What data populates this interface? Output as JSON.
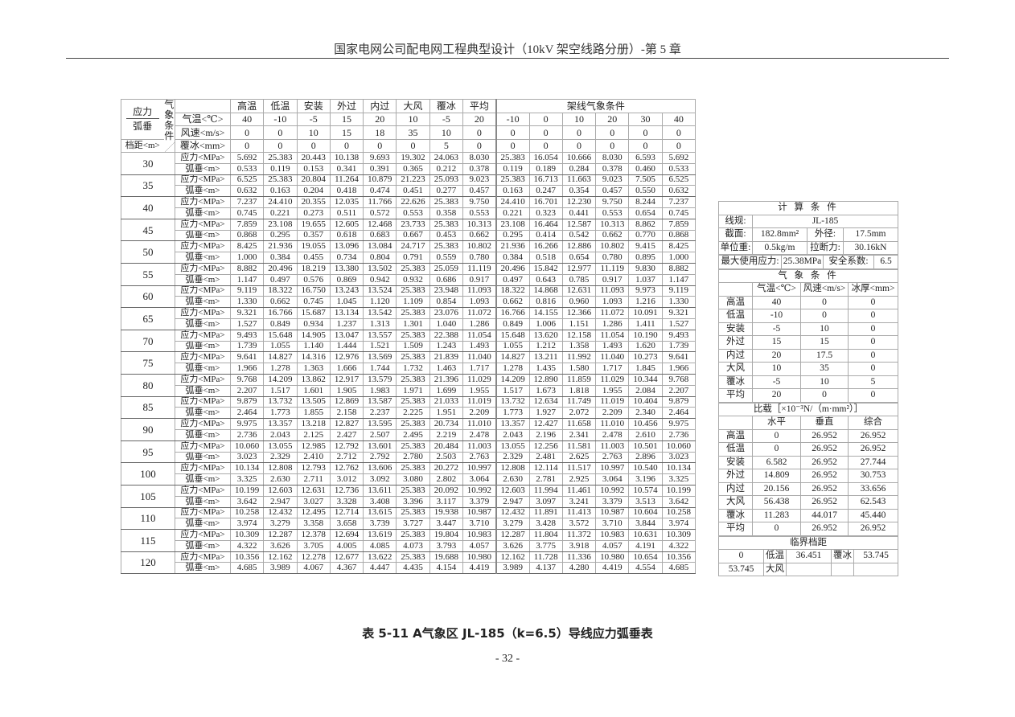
{
  "header": {
    "title": "国家电网公司配电网工程典型设计（10kV 架空线路分册）-第 5 章"
  },
  "main_table": {
    "corner": {
      "top": "应力",
      "bottom": "弧垂",
      "vertical": "气象条件",
      "span_label": "档距<m>"
    },
    "conditions": [
      "高温",
      "低温",
      "安装",
      "外过",
      "内过",
      "大风",
      "覆冰",
      "平均"
    ],
    "erection_header": "架线气象条件",
    "row_labels": {
      "temp": "气温<℃>",
      "wind": "风速<m/s>",
      "ice": "覆冰<mm>",
      "stress": "应力<MPa>",
      "sag": "弧垂<m>"
    },
    "temp": [
      "40",
      "-10",
      "-5",
      "15",
      "20",
      "10",
      "-5",
      "20",
      "-10",
      "0",
      "10",
      "20",
      "30",
      "40"
    ],
    "wind": [
      "0",
      "0",
      "10",
      "15",
      "18",
      "35",
      "10",
      "0",
      "0",
      "0",
      "0",
      "0",
      "0",
      "0"
    ],
    "ice": [
      "0",
      "0",
      "0",
      "0",
      "0",
      "0",
      "5",
      "0",
      "0",
      "0",
      "0",
      "0",
      "0",
      "0"
    ],
    "rows": [
      {
        "span": "30",
        "stress": [
          "5.692",
          "25.383",
          "20.443",
          "10.138",
          "9.693",
          "19.302",
          "24.063",
          "8.030",
          "25.383",
          "16.054",
          "10.666",
          "8.030",
          "6.593",
          "5.692"
        ],
        "sag": [
          "0.533",
          "0.119",
          "0.153",
          "0.341",
          "0.391",
          "0.365",
          "0.212",
          "0.378",
          "0.119",
          "0.189",
          "0.284",
          "0.378",
          "0.460",
          "0.533"
        ]
      },
      {
        "span": "35",
        "stress": [
          "6.525",
          "25.383",
          "20.804",
          "11.264",
          "10.879",
          "21.223",
          "25.093",
          "9.023",
          "25.383",
          "16.713",
          "11.663",
          "9.023",
          "7.505",
          "6.525"
        ],
        "sag": [
          "0.632",
          "0.163",
          "0.204",
          "0.418",
          "0.474",
          "0.451",
          "0.277",
          "0.457",
          "0.163",
          "0.247",
          "0.354",
          "0.457",
          "0.550",
          "0.632"
        ]
      },
      {
        "span": "40",
        "stress": [
          "7.237",
          "24.410",
          "20.355",
          "12.035",
          "11.766",
          "22.626",
          "25.383",
          "9.750",
          "24.410",
          "16.701",
          "12.230",
          "9.750",
          "8.244",
          "7.237"
        ],
        "sag": [
          "0.745",
          "0.221",
          "0.273",
          "0.511",
          "0.572",
          "0.553",
          "0.358",
          "0.553",
          "0.221",
          "0.323",
          "0.441",
          "0.553",
          "0.654",
          "0.745"
        ]
      },
      {
        "span": "45",
        "stress": [
          "7.859",
          "23.108",
          "19.655",
          "12.605",
          "12.468",
          "23.733",
          "25.383",
          "10.313",
          "23.108",
          "16.464",
          "12.587",
          "10.313",
          "8.862",
          "7.859"
        ],
        "sag": [
          "0.868",
          "0.295",
          "0.357",
          "0.618",
          "0.683",
          "0.667",
          "0.453",
          "0.662",
          "0.295",
          "0.414",
          "0.542",
          "0.662",
          "0.770",
          "0.868"
        ]
      },
      {
        "span": "50",
        "stress": [
          "8.425",
          "21.936",
          "19.055",
          "13.096",
          "13.084",
          "24.717",
          "25.383",
          "10.802",
          "21.936",
          "16.266",
          "12.886",
          "10.802",
          "9.415",
          "8.425"
        ],
        "sag": [
          "1.000",
          "0.384",
          "0.455",
          "0.734",
          "0.804",
          "0.791",
          "0.559",
          "0.780",
          "0.384",
          "0.518",
          "0.654",
          "0.780",
          "0.895",
          "1.000"
        ]
      },
      {
        "span": "55",
        "stress": [
          "8.882",
          "20.496",
          "18.219",
          "13.380",
          "13.502",
          "25.383",
          "25.059",
          "11.119",
          "20.496",
          "15.842",
          "12.977",
          "11.119",
          "9.830",
          "8.882"
        ],
        "sag": [
          "1.147",
          "0.497",
          "0.576",
          "0.869",
          "0.942",
          "0.932",
          "0.686",
          "0.917",
          "0.497",
          "0.643",
          "0.785",
          "0.917",
          "1.037",
          "1.147"
        ]
      },
      {
        "span": "60",
        "stress": [
          "9.119",
          "18.322",
          "16.750",
          "13.243",
          "13.524",
          "25.383",
          "23.948",
          "11.093",
          "18.322",
          "14.868",
          "12.631",
          "11.093",
          "9.973",
          "9.119"
        ],
        "sag": [
          "1.330",
          "0.662",
          "0.745",
          "1.045",
          "1.120",
          "1.109",
          "0.854",
          "1.093",
          "0.662",
          "0.816",
          "0.960",
          "1.093",
          "1.216",
          "1.330"
        ]
      },
      {
        "span": "65",
        "stress": [
          "9.321",
          "16.766",
          "15.687",
          "13.134",
          "13.542",
          "25.383",
          "23.076",
          "11.072",
          "16.766",
          "14.155",
          "12.366",
          "11.072",
          "10.091",
          "9.321"
        ],
        "sag": [
          "1.527",
          "0.849",
          "0.934",
          "1.237",
          "1.313",
          "1.301",
          "1.040",
          "1.286",
          "0.849",
          "1.006",
          "1.151",
          "1.286",
          "1.411",
          "1.527"
        ]
      },
      {
        "span": "70",
        "stress": [
          "9.493",
          "15.648",
          "14.905",
          "13.047",
          "13.557",
          "25.383",
          "22.388",
          "11.054",
          "15.648",
          "13.620",
          "12.158",
          "11.054",
          "10.190",
          "9.493"
        ],
        "sag": [
          "1.739",
          "1.055",
          "1.140",
          "1.444",
          "1.521",
          "1.509",
          "1.243",
          "1.493",
          "1.055",
          "1.212",
          "1.358",
          "1.493",
          "1.620",
          "1.739"
        ]
      },
      {
        "span": "75",
        "stress": [
          "9.641",
          "14.827",
          "14.316",
          "12.976",
          "13.569",
          "25.383",
          "21.839",
          "11.040",
          "14.827",
          "13.211",
          "11.992",
          "11.040",
          "10.273",
          "9.641"
        ],
        "sag": [
          "1.966",
          "1.278",
          "1.363",
          "1.666",
          "1.744",
          "1.732",
          "1.463",
          "1.717",
          "1.278",
          "1.435",
          "1.580",
          "1.717",
          "1.845",
          "1.966"
        ]
      },
      {
        "span": "80",
        "stress": [
          "9.768",
          "14.209",
          "13.862",
          "12.917",
          "13.579",
          "25.383",
          "21.396",
          "11.029",
          "14.209",
          "12.890",
          "11.859",
          "11.029",
          "10.344",
          "9.768"
        ],
        "sag": [
          "2.207",
          "1.517",
          "1.601",
          "1.905",
          "1.983",
          "1.971",
          "1.699",
          "1.955",
          "1.517",
          "1.673",
          "1.818",
          "1.955",
          "2.084",
          "2.207"
        ]
      },
      {
        "span": "85",
        "stress": [
          "9.879",
          "13.732",
          "13.505",
          "12.869",
          "13.587",
          "25.383",
          "21.033",
          "11.019",
          "13.732",
          "12.634",
          "11.749",
          "11.019",
          "10.404",
          "9.879"
        ],
        "sag": [
          "2.464",
          "1.773",
          "1.855",
          "2.158",
          "2.237",
          "2.225",
          "1.951",
          "2.209",
          "1.773",
          "1.927",
          "2.072",
          "2.209",
          "2.340",
          "2.464"
        ]
      },
      {
        "span": "90",
        "stress": [
          "9.975",
          "13.357",
          "13.218",
          "12.827",
          "13.595",
          "25.383",
          "20.734",
          "11.010",
          "13.357",
          "12.427",
          "11.658",
          "11.010",
          "10.456",
          "9.975"
        ],
        "sag": [
          "2.736",
          "2.043",
          "2.125",
          "2.427",
          "2.507",
          "2.495",
          "2.219",
          "2.478",
          "2.043",
          "2.196",
          "2.341",
          "2.478",
          "2.610",
          "2.736"
        ]
      },
      {
        "span": "95",
        "stress": [
          "10.060",
          "13.055",
          "12.985",
          "12.792",
          "13.601",
          "25.383",
          "20.484",
          "11.003",
          "13.055",
          "12.256",
          "11.581",
          "11.003",
          "10.501",
          "10.060"
        ],
        "sag": [
          "3.023",
          "2.329",
          "2.410",
          "2.712",
          "2.792",
          "2.780",
          "2.503",
          "2.763",
          "2.329",
          "2.481",
          "2.625",
          "2.763",
          "2.896",
          "3.023"
        ]
      },
      {
        "span": "100",
        "stress": [
          "10.134",
          "12.808",
          "12.793",
          "12.762",
          "13.606",
          "25.383",
          "20.272",
          "10.997",
          "12.808",
          "12.114",
          "11.517",
          "10.997",
          "10.540",
          "10.134"
        ],
        "sag": [
          "3.325",
          "2.630",
          "2.711",
          "3.012",
          "3.092",
          "3.080",
          "2.802",
          "3.064",
          "2.630",
          "2.781",
          "2.925",
          "3.064",
          "3.196",
          "3.325"
        ]
      },
      {
        "span": "105",
        "stress": [
          "10.199",
          "12.603",
          "12.631",
          "12.736",
          "13.611",
          "25.383",
          "20.092",
          "10.992",
          "12.603",
          "11.994",
          "11.461",
          "10.992",
          "10.574",
          "10.199"
        ],
        "sag": [
          "3.642",
          "2.947",
          "3.027",
          "3.328",
          "3.408",
          "3.396",
          "3.117",
          "3.379",
          "2.947",
          "3.097",
          "3.241",
          "3.379",
          "3.513",
          "3.642"
        ]
      },
      {
        "span": "110",
        "stress": [
          "10.258",
          "12.432",
          "12.495",
          "12.714",
          "13.615",
          "25.383",
          "19.938",
          "10.987",
          "12.432",
          "11.891",
          "11.413",
          "10.987",
          "10.604",
          "10.258"
        ],
        "sag": [
          "3.974",
          "3.279",
          "3.358",
          "3.658",
          "3.739",
          "3.727",
          "3.447",
          "3.710",
          "3.279",
          "3.428",
          "3.572",
          "3.710",
          "3.844",
          "3.974"
        ]
      },
      {
        "span": "115",
        "stress": [
          "10.309",
          "12.287",
          "12.378",
          "12.694",
          "13.619",
          "25.383",
          "19.804",
          "10.983",
          "12.287",
          "11.804",
          "11.372",
          "10.983",
          "10.631",
          "10.309"
        ],
        "sag": [
          "4.322",
          "3.626",
          "3.705",
          "4.005",
          "4.085",
          "4.073",
          "3.793",
          "4.057",
          "3.626",
          "3.775",
          "3.918",
          "4.057",
          "4.191",
          "4.322"
        ]
      },
      {
        "span": "120",
        "stress": [
          "10.356",
          "12.162",
          "12.278",
          "12.677",
          "13.622",
          "25.383",
          "19.688",
          "10.980",
          "12.162",
          "11.728",
          "11.336",
          "10.980",
          "10.654",
          "10.356"
        ],
        "sag": [
          "4.685",
          "3.989",
          "4.067",
          "4.367",
          "4.447",
          "4.435",
          "4.154",
          "4.419",
          "3.989",
          "4.137",
          "4.280",
          "4.419",
          "4.554",
          "4.685"
        ]
      }
    ]
  },
  "calc": {
    "title": "计 算 条 件",
    "line_label": "线规:",
    "line_value": "JL-185",
    "area_label": "截面:",
    "area_value": "182.8mm²",
    "dia_label": "外径:",
    "dia_value": "17.5mm",
    "weight_label": "单位重:",
    "weight_value": "0.5kg/m",
    "break_label": "拉断力:",
    "break_value": "30.16kN",
    "maxstress_label": "最大使用应力:",
    "maxstress_value": "25.38MPa",
    "sf_label": "安全系数:",
    "sf_value": "6.5"
  },
  "weather": {
    "title": "气 象 条 件",
    "headers": [
      "气温<℃>",
      "风速<m/s>",
      "冰厚<mm>"
    ],
    "rows": [
      [
        "高温",
        "40",
        "0",
        "0"
      ],
      [
        "低温",
        "-10",
        "0",
        "0"
      ],
      [
        "安装",
        "-5",
        "10",
        "0"
      ],
      [
        "外过",
        "15",
        "15",
        "0"
      ],
      [
        "内过",
        "20",
        "17.5",
        "0"
      ],
      [
        "大风",
        "10",
        "35",
        "0"
      ],
      [
        "覆冰",
        "-5",
        "10",
        "5"
      ],
      [
        "平均",
        "20",
        "0",
        "0"
      ]
    ]
  },
  "load": {
    "title": "比载［×10⁻³N/（m·mm²）］",
    "headers": [
      "水平",
      "垂直",
      "综合"
    ],
    "rows": [
      [
        "高温",
        "0",
        "26.952",
        "26.952"
      ],
      [
        "低温",
        "0",
        "26.952",
        "26.952"
      ],
      [
        "安装",
        "6.582",
        "26.952",
        "27.744"
      ],
      [
        "外过",
        "14.809",
        "26.952",
        "30.753"
      ],
      [
        "内过",
        "20.156",
        "26.952",
        "33.656"
      ],
      [
        "大风",
        "56.438",
        "26.952",
        "62.543"
      ],
      [
        "覆冰",
        "11.283",
        "44.017",
        "45.440"
      ],
      [
        "平均",
        "0",
        "26.952",
        "26.952"
      ]
    ]
  },
  "critical": {
    "title": "临界档距",
    "rows": [
      [
        "0",
        "低温",
        "36.451",
        "覆冰",
        "53.745"
      ],
      [
        "53.745",
        "大风",
        "",
        "",
        ""
      ]
    ]
  },
  "caption": "表 5-11 A气象区 JL-185（k=6.5）导线应力弧垂表",
  "page_number": "- 32 -"
}
